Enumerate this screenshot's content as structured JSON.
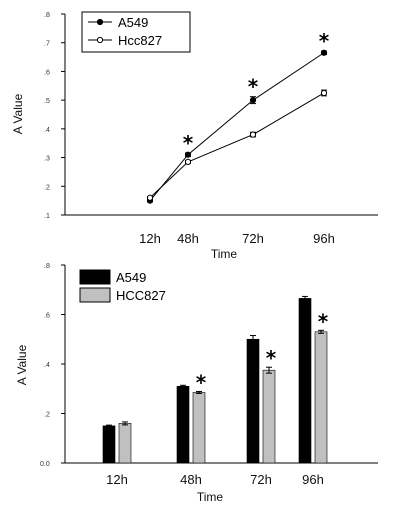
{
  "chart_data": [
    {
      "type": "line",
      "categories": [
        "12h",
        "48h",
        "72h",
        "96h"
      ],
      "series": [
        {
          "name": "A549",
          "values": [
            0.15,
            0.31,
            0.5,
            0.665
          ],
          "errors": [
            0.004,
            0.006,
            0.012,
            0.006
          ],
          "marker": "filled-circle",
          "color": "#000000"
        },
        {
          "name": "Hcc827",
          "values": [
            0.16,
            0.285,
            0.38,
            0.525
          ],
          "errors": [
            0.004,
            0.005,
            0.008,
            0.01
          ],
          "marker": "open-circle",
          "color": "#000000"
        }
      ],
      "significance": [
        "",
        "*",
        "*",
        "*"
      ],
      "xlabel": "Time",
      "ylabel": "A Value",
      "ylim": [
        0.1,
        0.8
      ],
      "yticks": [
        ".1",
        ".2",
        ".3",
        ".4",
        ".5",
        ".6",
        ".7",
        ".8"
      ],
      "grid": false,
      "legend": "top-left"
    },
    {
      "type": "bar",
      "categories": [
        "12h",
        "48h",
        "72h",
        "96h"
      ],
      "series": [
        {
          "name": "A549",
          "values": [
            0.15,
            0.31,
            0.5,
            0.665
          ],
          "errors": [
            0.003,
            0.004,
            0.015,
            0.008
          ],
          "color": "#000000"
        },
        {
          "name": "HCC827",
          "values": [
            0.16,
            0.285,
            0.375,
            0.53
          ],
          "errors": [
            0.006,
            0.004,
            0.012,
            0.006
          ],
          "color": "#c0c0c0"
        }
      ],
      "significance": [
        "",
        "*",
        "*",
        "*"
      ],
      "xlabel": "Time",
      "ylabel": "A Value",
      "ylim": [
        0.0,
        0.8
      ],
      "yticks": [
        "0.0",
        ".2",
        ".4",
        ".6",
        ".8"
      ],
      "grid": false,
      "legend": "top-left"
    }
  ]
}
